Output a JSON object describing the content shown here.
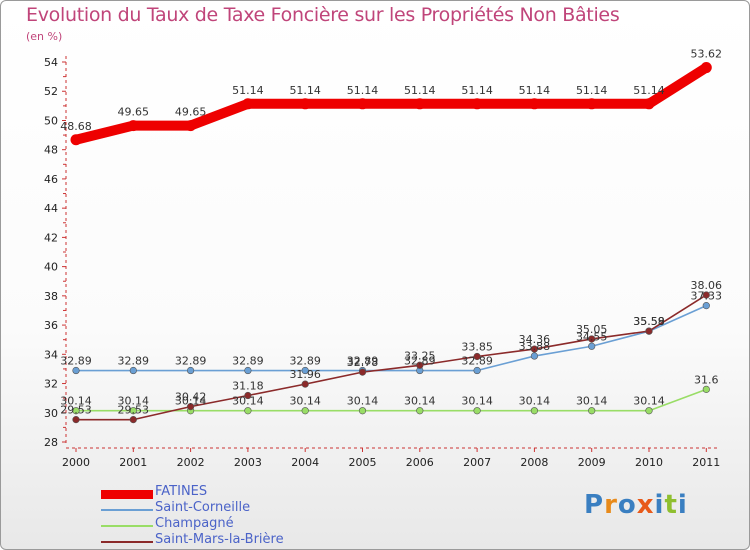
{
  "title": "Evolution du Taux de Taxe Foncière sur les Propriétés Non Bâties",
  "unit": "(en %)",
  "logo": "Proxiti",
  "chart_data": {
    "type": "line",
    "title": "Evolution du Taux de Taxe Foncière sur les Propriétés Non Bâties",
    "ylabel": "(en %)",
    "ylim": [
      28,
      54
    ],
    "yticks": [
      28,
      30,
      32,
      34,
      36,
      38,
      40,
      42,
      44,
      46,
      48,
      50,
      52,
      54
    ],
    "categories": [
      "2000",
      "2001",
      "2002",
      "2003",
      "2004",
      "2005",
      "2006",
      "2007",
      "2008",
      "2009",
      "2010",
      "2011"
    ],
    "grid": false,
    "legend_position": "bottom-left",
    "series": [
      {
        "name": "FATINES",
        "color": "#ee0000",
        "values": [
          48.68,
          49.65,
          49.65,
          51.14,
          51.14,
          51.14,
          51.14,
          51.14,
          51.14,
          51.14,
          51.14,
          53.62
        ],
        "labels": [
          "48.68",
          "49.65",
          "49.65",
          "51.14",
          "51.14",
          "51.14",
          "51.14",
          "51.14",
          "51.14",
          "51.14",
          "51.14",
          "53.62"
        ]
      },
      {
        "name": "Saint-Corneille",
        "color": "#6a9fd4",
        "values": [
          32.89,
          32.89,
          32.89,
          32.89,
          32.89,
          32.89,
          32.89,
          32.89,
          33.88,
          34.55,
          35.58,
          37.33
        ],
        "labels": [
          "32.89",
          "32.89",
          "32.89",
          "32.89",
          "32.89",
          "32.89",
          "32.89",
          "32.89",
          "33.88",
          "34.55",
          "35.58",
          "37.33"
        ]
      },
      {
        "name": "Champagné",
        "color": "#99dd66",
        "values": [
          30.14,
          30.14,
          30.14,
          30.14,
          30.14,
          30.14,
          30.14,
          30.14,
          30.14,
          30.14,
          30.14,
          31.6
        ],
        "labels": [
          "30.14",
          "30.14",
          "30.14",
          "30.14",
          "30.14",
          "30.14",
          "30.14",
          "30.14",
          "30.14",
          "30.14",
          "30.14",
          "31.6"
        ]
      },
      {
        "name": "Saint-Mars-la-Brière",
        "color": "#8b2a2a",
        "values": [
          29.53,
          29.53,
          30.42,
          31.18,
          31.96,
          32.78,
          33.25,
          33.85,
          34.36,
          35.05,
          35.59,
          38.06
        ],
        "labels": [
          "29.53",
          "29.53",
          "30.42",
          "31.18",
          "31.96",
          "32.78",
          "33.25",
          "33.85",
          "34.36",
          "35.05",
          "35.59",
          "38.06"
        ]
      }
    ]
  }
}
